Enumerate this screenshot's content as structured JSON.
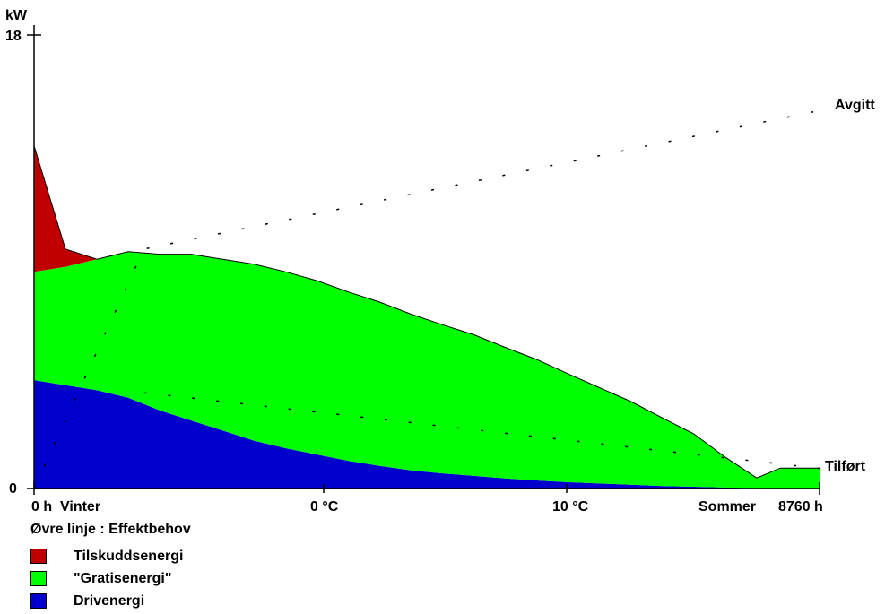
{
  "chart_data": {
    "type": "area",
    "y_unit": "kW",
    "ylim": [
      0,
      18
    ],
    "y_ticks": [
      "18",
      "0"
    ],
    "x_labels": [
      "0 h",
      "Vinter",
      "0 °C",
      "10 °C",
      "Sommer",
      "8760 h"
    ],
    "line_labels": {
      "upper": "Avgitt",
      "lower": "Tilført"
    },
    "series": [
      {
        "name": "Tilskuddsenergi",
        "color": "#c00000",
        "x": [
          0,
          4,
          8,
          12,
          16,
          20,
          24,
          28,
          32,
          36,
          40,
          44,
          48,
          52,
          56,
          60,
          64,
          68,
          72,
          76,
          80,
          84,
          88,
          92,
          95,
          100
        ],
        "values": [
          5.0,
          0.7,
          0,
          0,
          0,
          0,
          0,
          0,
          0,
          0,
          0,
          0,
          0,
          0,
          0,
          0,
          0,
          0,
          0,
          0,
          0,
          0,
          0,
          0,
          0,
          0
        ]
      },
      {
        "name": "\"Gratisenergi\"",
        "color": "#00ff00",
        "x": [
          0,
          4,
          8,
          12,
          16,
          20,
          24,
          28,
          32,
          36,
          40,
          44,
          48,
          52,
          56,
          60,
          64,
          68,
          72,
          76,
          80,
          84,
          88,
          92,
          95,
          100
        ],
        "values": [
          4.3,
          4.7,
          5.2,
          5.8,
          6.2,
          6.6,
          6.8,
          7.0,
          7.0,
          6.9,
          6.7,
          6.5,
          6.2,
          5.9,
          5.6,
          5.2,
          4.8,
          4.3,
          3.8,
          3.3,
          2.7,
          2.1,
          1.2,
          0.4,
          0.8,
          0.8
        ]
      },
      {
        "name": "Drivenergi",
        "color": "#0000cc",
        "x": [
          0,
          4,
          8,
          12,
          16,
          20,
          24,
          28,
          32,
          36,
          40,
          44,
          48,
          52,
          56,
          60,
          64,
          68,
          72,
          76,
          80,
          84,
          88,
          92,
          95,
          100
        ],
        "values": [
          4.3,
          4.1,
          3.9,
          3.6,
          3.1,
          2.7,
          2.3,
          1.9,
          1.6,
          1.35,
          1.1,
          0.9,
          0.72,
          0.6,
          0.5,
          0.4,
          0.32,
          0.25,
          0.2,
          0.15,
          0.1,
          0.07,
          0.04,
          0.02,
          0.01,
          0.01
        ]
      }
    ],
    "upper_line_x": [
      0,
      14,
      100
    ],
    "upper_line_y": [
      0,
      9.5,
      15.0
    ],
    "lower_line_x": [
      14,
      100
    ],
    "lower_line_y": [
      3.8,
      0.8
    ],
    "legend_title": "Øvre linje  :  Effektbehov",
    "grid": false
  }
}
